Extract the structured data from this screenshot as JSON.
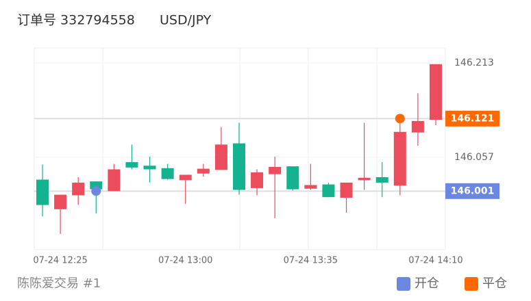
{
  "chart_data": {
    "type": "candlestick",
    "title": "订单号 332794558",
    "symbol": "USD/JPY",
    "footer": "陈陈爱交易 #1",
    "categories": [
      null,
      "07-24 12:25",
      null,
      null,
      null,
      null,
      null,
      null,
      "07-24 13:00",
      null,
      null,
      null,
      null,
      null,
      null,
      "07-24 13:35",
      null,
      null,
      null,
      null,
      null,
      null,
      "07-24 14:10"
    ],
    "open": [
      146.02,
      145.971,
      145.994,
      146.017,
      146.001,
      146.049,
      146.043,
      146.039,
      146.019,
      146.03,
      146.036,
      146.08,
      146.006,
      146.029,
      146.042,
      146.005,
      146.012,
      145.99,
      146.019,
      146.024,
      146.01,
      146.098,
      146.119
    ],
    "high": [
      146.045,
      145.995,
      146.024,
      146.017,
      146.046,
      146.078,
      146.058,
      146.046,
      146.028,
      146.046,
      146.107,
      146.114,
      146.037,
      146.058,
      146.042,
      146.046,
      146.015,
      146.015,
      146.114,
      146.049,
      146.114,
      146.163,
      146.211
    ],
    "low": [
      145.959,
      145.93,
      145.978,
      145.964,
      146.001,
      146.037,
      146.015,
      146.02,
      145.98,
      146.025,
      146.036,
      145.995,
      145.994,
      145.956,
      146.002,
      146.003,
      145.991,
      145.965,
      146.003,
      145.991,
      145.994,
      146.076,
      146.11
    ],
    "close": [
      145.978,
      145.995,
      146.015,
      146.004,
      146.037,
      146.04,
      146.037,
      146.021,
      146.028,
      146.038,
      146.078,
      146.003,
      146.032,
      146.041,
      146.004,
      146.011,
      145.991,
      146.015,
      146.023,
      146.015,
      146.099,
      146.117,
      146.211
    ],
    "up_color": "#eb4d5c",
    "down_color": "#14b28f",
    "ylim": [
      145.904,
      146.238
    ],
    "yticks": [
      146.057,
      146.213
    ],
    "series": [
      {
        "name": "开仓",
        "color": "#6b87e0",
        "values": [
          null,
          null,
          null,
          146.001,
          null,
          null,
          null,
          null,
          null,
          null,
          null,
          null,
          null,
          null,
          null,
          null,
          null,
          null,
          null,
          null,
          null,
          null,
          null
        ]
      },
      {
        "name": "平仓",
        "color": "#ff6a00",
        "values": [
          null,
          null,
          null,
          null,
          null,
          null,
          null,
          null,
          null,
          null,
          null,
          null,
          null,
          null,
          null,
          null,
          null,
          null,
          null,
          null,
          146.121,
          null,
          null
        ]
      }
    ]
  }
}
